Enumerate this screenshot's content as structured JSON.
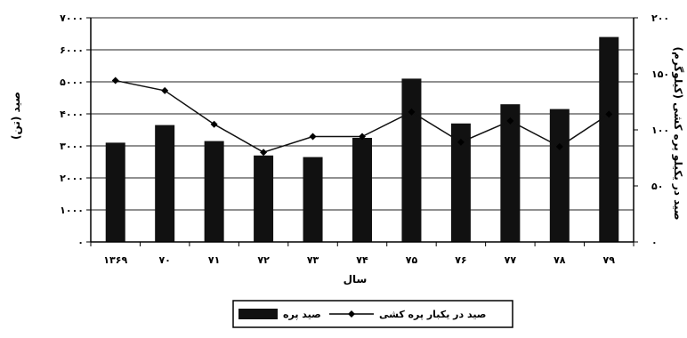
{
  "chart_data": {
    "type": "bar",
    "categories": [
      "۱۳۶۹",
      "۷۰",
      "۷۱",
      "۷۲",
      "۷۳",
      "۷۴",
      "۷۵",
      "۷۶",
      "۷۷",
      "۷۸",
      "۷۹"
    ],
    "xlabel": "سال",
    "ylabel": "صید (تن)",
    "y2label": "صید در یکیلو پره کشی (کیلوگرم)",
    "ylim": [
      0,
      7000
    ],
    "y2lim": [
      0,
      200
    ],
    "yticks": [
      "۰",
      "۱۰۰۰",
      "۲۰۰۰",
      "۳۰۰۰",
      "۴۰۰۰",
      "۵۰۰۰",
      "۶۰۰۰",
      "۷۰۰۰"
    ],
    "y2ticks": [
      "۰",
      "۵۰",
      "۱۰۰",
      "۱۵۰",
      "۲۰۰"
    ],
    "grid": true,
    "legend_position": "bottom-center",
    "series": [
      {
        "name": "صید پره",
        "type": "bar",
        "axis": "left",
        "color": "#111111",
        "values": [
          3100,
          3650,
          3150,
          2700,
          2650,
          3250,
          5100,
          3700,
          4300,
          4150,
          6400
        ]
      },
      {
        "name": "صید در یکبار پره کشی",
        "type": "line",
        "axis": "right",
        "color": "#111111",
        "values": [
          144,
          135,
          105,
          80,
          94,
          94,
          116,
          89,
          108,
          85,
          114
        ]
      }
    ]
  }
}
